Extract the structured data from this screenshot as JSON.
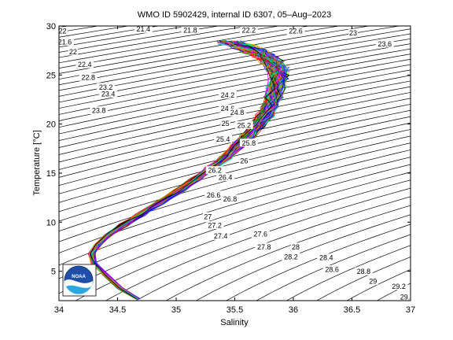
{
  "chart_data": {
    "type": "scatter",
    "title": "WMO ID 5902429, internal ID 6307, 05–Aug–2023",
    "xlabel": "Salinity",
    "ylabel": "Temperature [°C]",
    "xlim": [
      34,
      37
    ],
    "ylim": [
      2,
      30
    ],
    "x_ticks": [
      "34",
      "34.5",
      "35",
      "35.5",
      "36",
      "36.5",
      "37"
    ],
    "y_ticks": [
      "5",
      "10",
      "15",
      "20",
      "25",
      "30"
    ],
    "grid": false,
    "legend": "none",
    "profile_count": 140,
    "mean_profile": {
      "salinity": [
        34.67,
        34.52,
        34.4,
        34.3,
        34.28,
        34.33,
        34.42,
        34.55,
        34.7,
        34.86,
        35.02,
        35.17,
        35.3,
        35.42,
        35.52,
        35.61,
        35.69,
        35.76,
        35.8,
        35.83,
        35.85,
        35.87,
        35.86,
        35.82,
        35.76,
        35.68,
        35.58,
        35.45
      ],
      "temperature": [
        2.2,
        3.3,
        4.6,
        5.8,
        6.8,
        7.7,
        8.7,
        9.7,
        10.8,
        12.0,
        13.2,
        14.4,
        15.5,
        16.6,
        17.7,
        18.8,
        19.8,
        20.8,
        21.8,
        22.8,
        23.8,
        24.8,
        25.6,
        26.3,
        26.9,
        27.4,
        27.9,
        28.3
      ]
    },
    "isopycnal_labels": [
      {
        "text": "22",
        "s": 34.03,
        "t": 29.5
      },
      {
        "text": "21.6",
        "s": 34.05,
        "t": 28.4
      },
      {
        "text": "22",
        "s": 34.12,
        "t": 27.4
      },
      {
        "text": "22.4",
        "s": 34.22,
        "t": 26.1
      },
      {
        "text": "22.8",
        "s": 34.25,
        "t": 24.8
      },
      {
        "text": "23.2",
        "s": 34.4,
        "t": 23.8
      },
      {
        "text": "23.4",
        "s": 34.42,
        "t": 23.1
      },
      {
        "text": "23.8",
        "s": 34.34,
        "t": 21.4
      },
      {
        "text": "21.4",
        "s": 34.72,
        "t": 29.7
      },
      {
        "text": "21.8",
        "s": 35.12,
        "t": 29.6
      },
      {
        "text": "22.2",
        "s": 35.62,
        "t": 29.6
      },
      {
        "text": "22.6",
        "s": 36.02,
        "t": 29.5
      },
      {
        "text": "23",
        "s": 36.51,
        "t": 29.3
      },
      {
        "text": "23.6",
        "s": 36.78,
        "t": 28.2
      },
      {
        "text": "24.2",
        "s": 35.44,
        "t": 23.0
      },
      {
        "text": "24.6",
        "s": 35.44,
        "t": 21.6
      },
      {
        "text": "24.8",
        "s": 35.52,
        "t": 21.2
      },
      {
        "text": "25",
        "s": 35.42,
        "t": 20.1
      },
      {
        "text": "25.2",
        "s": 35.58,
        "t": 19.9
      },
      {
        "text": "25.4",
        "s": 35.4,
        "t": 18.5
      },
      {
        "text": "25.8",
        "s": 35.62,
        "t": 18.1
      },
      {
        "text": "26",
        "s": 35.58,
        "t": 16.3
      },
      {
        "text": "26.2",
        "s": 35.33,
        "t": 15.3
      },
      {
        "text": "26.4",
        "s": 35.42,
        "t": 14.6
      },
      {
        "text": "26.6",
        "s": 35.32,
        "t": 12.8
      },
      {
        "text": "26.8",
        "s": 35.46,
        "t": 12.4
      },
      {
        "text": "27",
        "s": 35.27,
        "t": 10.6
      },
      {
        "text": "27.2",
        "s": 35.33,
        "t": 9.7
      },
      {
        "text": "27.4",
        "s": 35.38,
        "t": 8.6
      },
      {
        "text": "27.6",
        "s": 35.72,
        "t": 8.8
      },
      {
        "text": "27.8",
        "s": 35.75,
        "t": 7.5
      },
      {
        "text": "28",
        "s": 36.02,
        "t": 7.5
      },
      {
        "text": "28.2",
        "s": 35.98,
        "t": 6.5
      },
      {
        "text": "28.4",
        "s": 36.28,
        "t": 6.4
      },
      {
        "text": "28.6",
        "s": 36.33,
        "t": 5.2
      },
      {
        "text": "28.8",
        "s": 36.6,
        "t": 5.0
      },
      {
        "text": "29",
        "s": 36.68,
        "t": 4.0
      },
      {
        "text": "29.2",
        "s": 36.9,
        "t": 3.5
      },
      {
        "text": "29.4",
        "s": 36.97,
        "t": 2.4
      }
    ]
  },
  "logo": {
    "text": "NOAA",
    "colors": {
      "sky": "#1f4fa8",
      "wave": "#29a8e0",
      "white": "#ffffff"
    }
  },
  "colors": {
    "isopycnal": "#000000",
    "axis": "#000000",
    "profile_palette": [
      "#ff0000",
      "#0000ff",
      "#00a000",
      "#ff00ff",
      "#00c8c8",
      "#c8a000",
      "#7f00ff",
      "#000000",
      "#ff8000",
      "#00ff80",
      "#804000",
      "#4060ff"
    ]
  }
}
